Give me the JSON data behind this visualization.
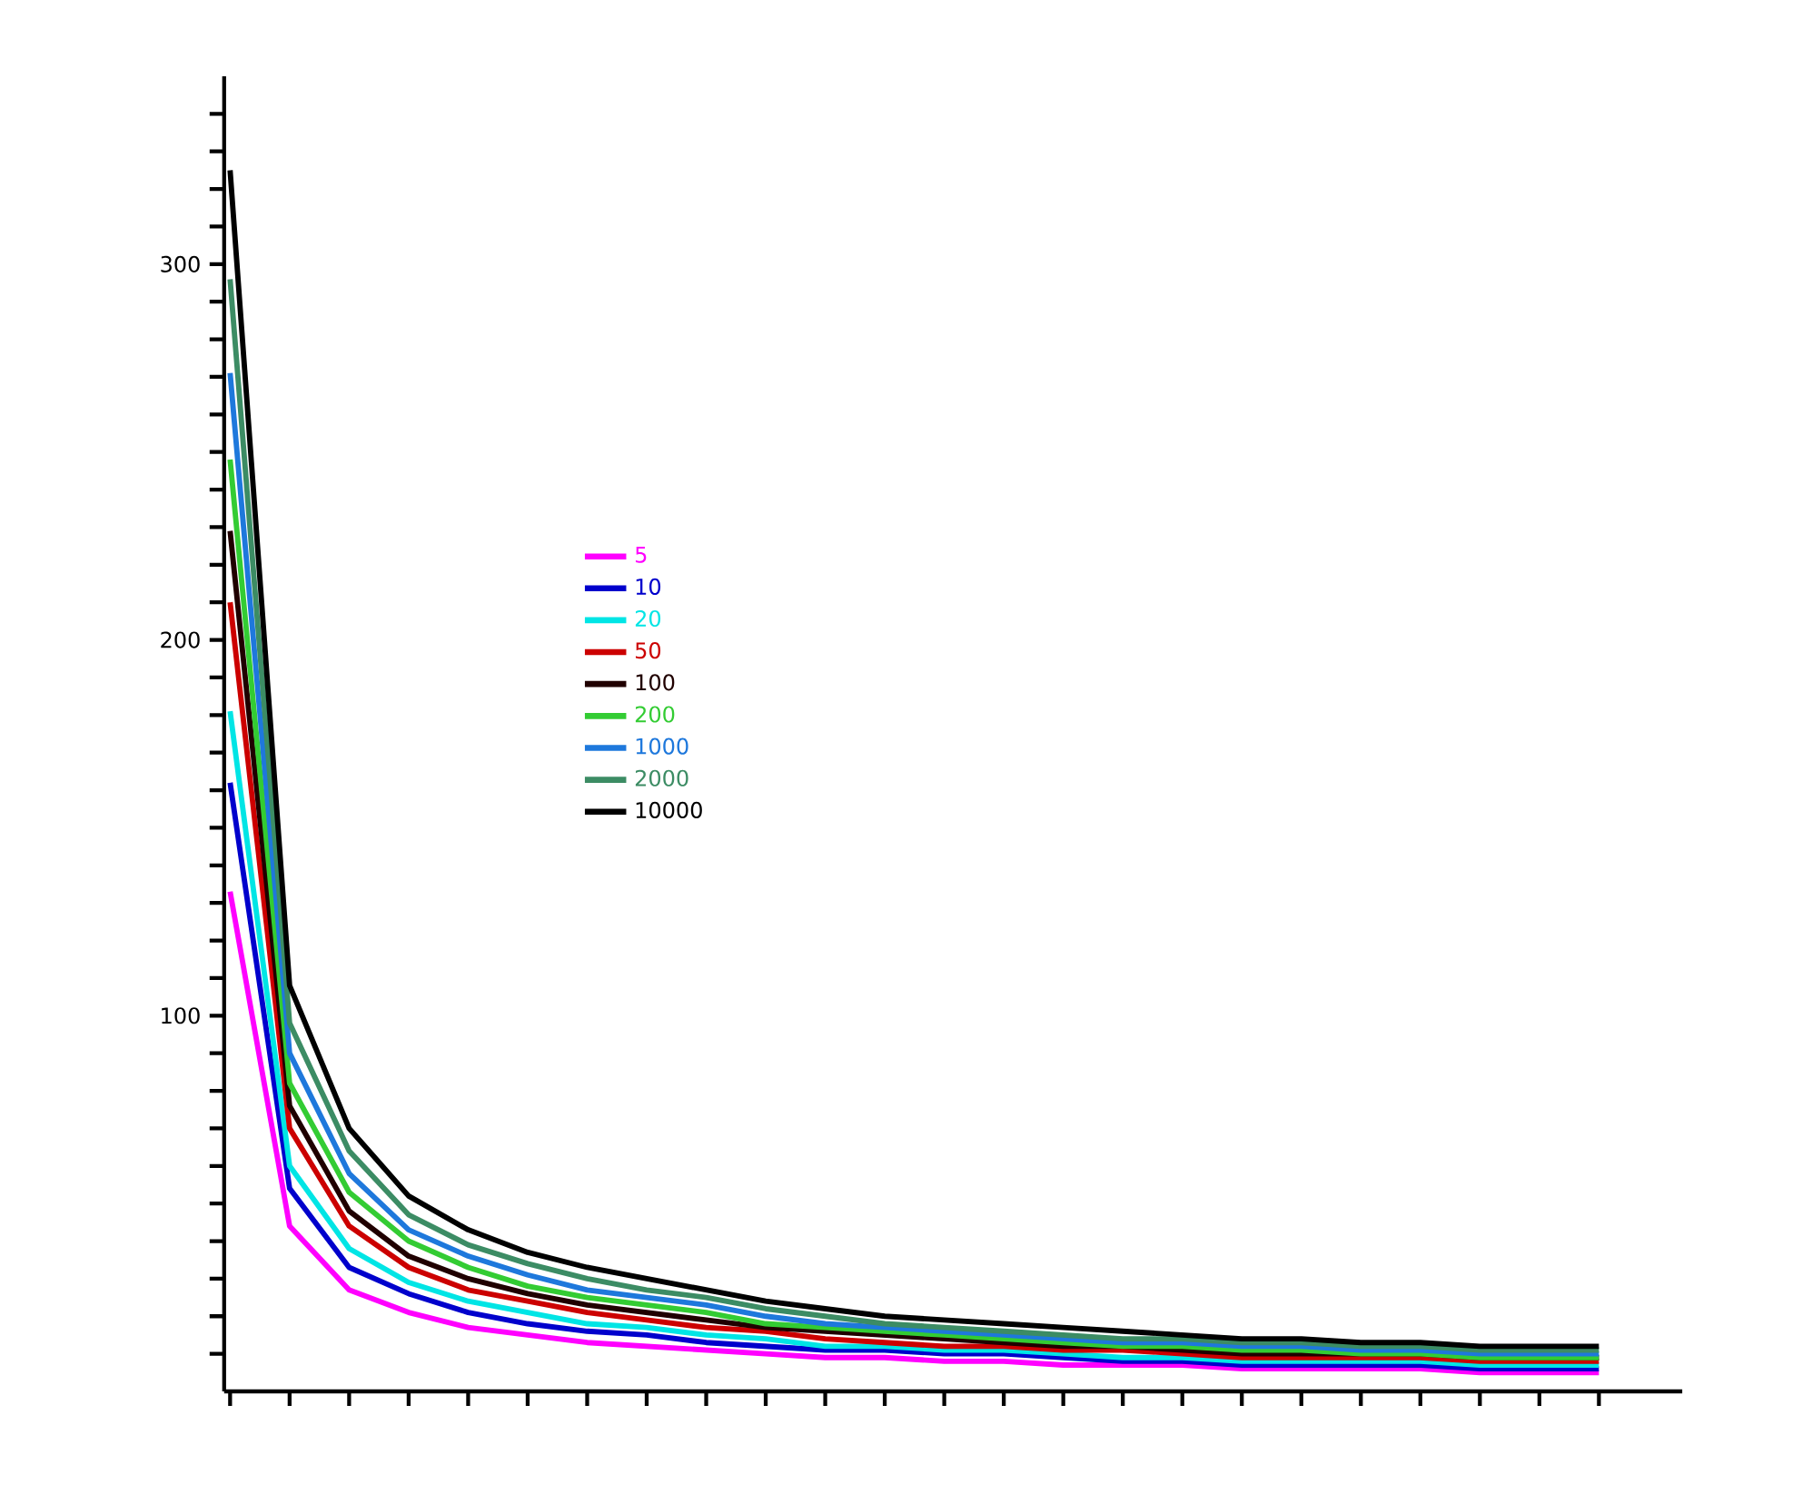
{
  "chart_data": {
    "type": "line",
    "tick_labels": "y",
    "legend": "left",
    "grid": false,
    "categories": [
      null,
      null,
      null,
      null,
      null,
      null,
      null,
      null,
      null,
      null,
      null,
      null,
      null,
      null,
      null,
      null,
      null,
      null,
      null,
      null,
      null,
      null,
      null,
      null
    ],
    "ylim": [
      0,
      350
    ],
    "yticks": [
      {
        "value": 10,
        "label": null
      },
      {
        "value": 20,
        "label": null
      },
      {
        "value": 30,
        "label": null
      },
      {
        "value": 40,
        "label": null
      },
      {
        "value": 50,
        "label": null
      },
      {
        "value": 60,
        "label": null
      },
      {
        "value": 70,
        "label": null
      },
      {
        "value": 80,
        "label": null
      },
      {
        "value": 90,
        "label": null
      },
      100,
      {
        "value": 110,
        "label": null
      },
      {
        "value": 120,
        "label": null
      },
      {
        "value": 130,
        "label": null
      },
      {
        "value": 140,
        "label": null
      },
      {
        "value": 150,
        "label": null
      },
      {
        "value": 160,
        "label": null
      },
      {
        "value": 170,
        "label": null
      },
      {
        "value": 180,
        "label": null
      },
      {
        "value": 190,
        "label": null
      },
      200,
      {
        "value": 210,
        "label": null
      },
      {
        "value": 220,
        "label": null
      },
      {
        "value": 230,
        "label": null
      },
      {
        "value": 240,
        "label": null
      },
      {
        "value": 250,
        "label": null
      },
      {
        "value": 260,
        "label": null
      },
      {
        "value": 270,
        "label": null
      },
      {
        "value": 280,
        "label": null
      },
      {
        "value": 290,
        "label": null
      },
      300,
      {
        "value": 310,
        "label": null
      },
      {
        "value": 320,
        "label": null
      },
      {
        "value": 330,
        "label": null
      },
      {
        "value": 340,
        "label": null
      }
    ],
    "series": [
      {
        "name": "5",
        "color": "#ff00ff",
        "values": [
          133,
          44,
          27,
          21,
          17,
          15,
          13,
          12,
          11,
          10,
          9,
          9,
          8,
          8,
          7,
          7,
          7,
          6,
          6,
          6,
          6,
          5,
          5,
          5
        ]
      },
      {
        "name": "10",
        "color": "#0000cc",
        "values": [
          162,
          54,
          33,
          26,
          21,
          18,
          16,
          15,
          13,
          12,
          11,
          11,
          10,
          10,
          9,
          8,
          8,
          7,
          7,
          7,
          7,
          6,
          6,
          6
        ]
      },
      {
        "name": "20",
        "color": "#00e5e5",
        "values": [
          181,
          60,
          38,
          29,
          24,
          21,
          18,
          17,
          15,
          14,
          12,
          12,
          11,
          11,
          10,
          9,
          9,
          8,
          8,
          8,
          8,
          7,
          7,
          7
        ]
      },
      {
        "name": "50",
        "color": "#cc0000",
        "values": [
          210,
          70,
          44,
          33,
          27,
          24,
          21,
          19,
          17,
          16,
          14,
          13,
          12,
          12,
          11,
          11,
          10,
          9,
          9,
          9,
          9,
          8,
          8,
          8
        ]
      },
      {
        "name": "100",
        "color": "#200000",
        "values": [
          229,
          76,
          48,
          36,
          30,
          26,
          23,
          21,
          19,
          17,
          16,
          15,
          14,
          13,
          12,
          12,
          11,
          10,
          10,
          10,
          10,
          9,
          9,
          9
        ]
      },
      {
        "name": "200",
        "color": "#33cc33",
        "values": [
          248,
          82,
          53,
          40,
          33,
          28,
          25,
          23,
          21,
          18,
          17,
          16,
          15,
          14,
          13,
          12,
          12,
          11,
          11,
          10,
          10,
          9,
          9,
          9
        ]
      },
      {
        "name": "1000",
        "color": "#1e78dc",
        "values": [
          271,
          90,
          58,
          43,
          36,
          31,
          27,
          25,
          23,
          20,
          18,
          17,
          16,
          15,
          14,
          13,
          13,
          12,
          12,
          11,
          11,
          10,
          10,
          10
        ]
      },
      {
        "name": "2000",
        "color": "#3c8c64",
        "values": [
          296,
          98,
          64,
          47,
          39,
          34,
          30,
          27,
          25,
          22,
          20,
          18,
          17,
          16,
          15,
          14,
          14,
          13,
          13,
          12,
          12,
          11,
          11,
          11
        ]
      },
      {
        "name": "10000",
        "color": "#000000",
        "values": [
          325,
          108,
          70,
          52,
          43,
          37,
          33,
          30,
          27,
          24,
          22,
          20,
          19,
          18,
          17,
          16,
          15,
          14,
          14,
          13,
          13,
          12,
          12,
          12
        ]
      }
    ]
  }
}
